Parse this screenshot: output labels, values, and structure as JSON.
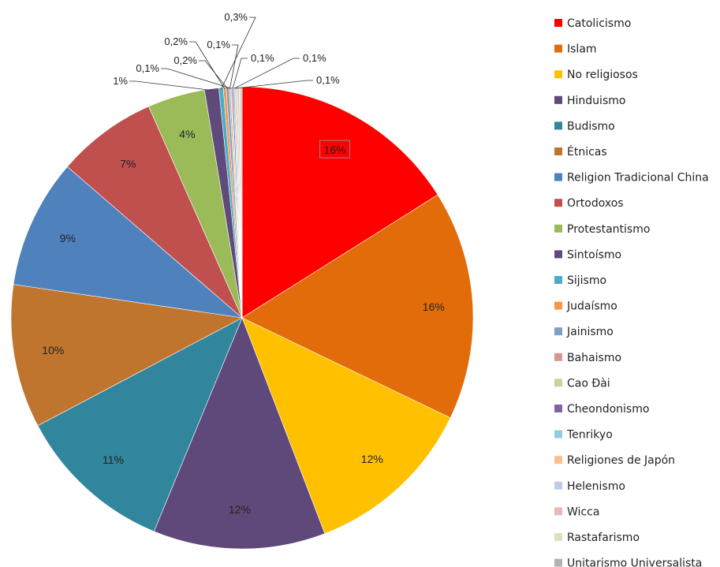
{
  "chart_data": {
    "type": "pie",
    "slices": [
      {
        "label": "Catolicismo",
        "value": 16,
        "display": "16%",
        "color": "#FF0000"
      },
      {
        "label": "Islam",
        "value": 16,
        "display": "16%",
        "color": "#E36C0A"
      },
      {
        "label": "No religiosos",
        "value": 12,
        "display": "12%",
        "color": "#FFC000"
      },
      {
        "label": "Hinduismo",
        "value": 12,
        "display": "12%",
        "color": "#5F497A"
      },
      {
        "label": "Budismo",
        "value": 11,
        "display": "11%",
        "color": "#31859C"
      },
      {
        "label": "Étnicas",
        "value": 10,
        "display": "10%",
        "color": "#C0752F"
      },
      {
        "label": "Religion Tradicional China",
        "value": 9,
        "display": "9%",
        "color": "#4F81BD"
      },
      {
        "label": "Ortodoxos",
        "value": 7,
        "display": "7%",
        "color": "#C0504D"
      },
      {
        "label": "Protestantismo",
        "value": 4,
        "display": "4%",
        "color": "#9BBB59"
      },
      {
        "label": "Sintoísmo",
        "value": 1,
        "display": "1%",
        "color": "#604A7B"
      },
      {
        "label": "Sijismo",
        "value": 0.3,
        "display": "0,3%",
        "color": "#4BACC6"
      },
      {
        "label": "Judaísmo",
        "value": 0.2,
        "display": "0,2%",
        "color": "#F79646"
      },
      {
        "label": "Jainismo",
        "value": 0.2,
        "display": "0,2%",
        "color": "#7F9FC8"
      },
      {
        "label": "Bahaismo",
        "value": 0.1,
        "display": "0,1%",
        "color": "#D99694"
      },
      {
        "label": "Cao Đài",
        "value": 0.1,
        "display": "0,1%",
        "color": "#C3D69B"
      },
      {
        "label": "Cheondonismo",
        "value": 0.1,
        "display": "0,1%",
        "color": "#8064A2"
      },
      {
        "label": "Tenrikyo",
        "value": 0.1,
        "display": "0,1%",
        "color": "#93CDDD"
      },
      {
        "label": "Religiones de Japón",
        "value": 0.1,
        "display": "0,1%",
        "color": "#FAC090"
      },
      {
        "label": "Helenismo",
        "value": 0.1,
        "display": "",
        "color": "#B9CDE5"
      },
      {
        "label": "Wicca",
        "value": 0.1,
        "display": "",
        "color": "#E6B9B8"
      },
      {
        "label": "Rastafarismo",
        "value": 0.1,
        "display": "",
        "color": "#D7E4BD"
      },
      {
        "label": "Unitarismo Universalista",
        "value": 0.1,
        "display": "",
        "color": "#B3B3B3"
      }
    ],
    "start_angle": "12 o'clock",
    "direction": "clockwise",
    "legend_position": "right",
    "title": ""
  }
}
